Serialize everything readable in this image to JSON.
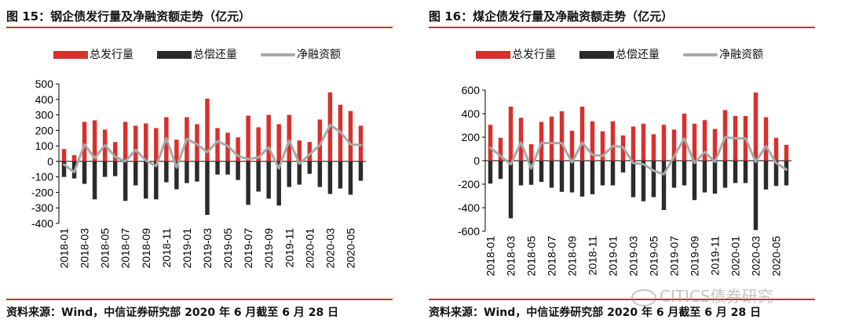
{
  "charts": [
    {
      "id": "left",
      "title": "图 15：钢企债发行量及净融资额走势（亿元）",
      "source": "资料来源：Wind，中信证券研究部 2020 年 6 月截至 6 月 28 日",
      "legend": [
        {
          "label": "总发行量",
          "kind": "bar",
          "color": "#d9302c"
        },
        {
          "label": "总偿还量",
          "kind": "bar",
          "color": "#2b2b2b"
        },
        {
          "label": "净融资额",
          "kind": "line",
          "color": "#a8a8a8"
        }
      ]
    },
    {
      "id": "right",
      "title": "图 16：煤企债发行量及净融资额走势（亿元）",
      "source": "资料来源：Wind，中信证券研究部 2020 年 6 月截至 6 月 28 日",
      "legend": [
        {
          "label": "总发行量",
          "kind": "bar",
          "color": "#d9302c"
        },
        {
          "label": "总偿还量",
          "kind": "bar",
          "color": "#2b2b2b"
        },
        {
          "label": "净融资额",
          "kind": "line",
          "color": "#a8a8a8"
        }
      ]
    }
  ],
  "watermark": "CITICS债券研究",
  "chart_data": [
    {
      "type": "bar",
      "title": "图 15：钢企债发行量及净融资额走势（亿元）",
      "categories": [
        "2018-01",
        "2018-02",
        "2018-03",
        "2018-04",
        "2018-05",
        "2018-06",
        "2018-07",
        "2018-08",
        "2018-09",
        "2018-10",
        "2018-11",
        "2018-12",
        "2019-01",
        "2019-02",
        "2019-03",
        "2019-04",
        "2019-05",
        "2019-06",
        "2019-07",
        "2019-08",
        "2019-09",
        "2019-10",
        "2019-11",
        "2019-12",
        "2020-01",
        "2020-02",
        "2020-03",
        "2020-04",
        "2020-05",
        "2020-06"
      ],
      "tick_labels": [
        "2018-01",
        "2018-03",
        "2018-05",
        "2018-07",
        "2018-09",
        "2018-11",
        "2019-01",
        "2019-03",
        "2019-05",
        "2019-07",
        "2019-09",
        "2019-11",
        "2020-01",
        "2020-03",
        "2020-05"
      ],
      "yticks": [
        500,
        400,
        300,
        200,
        100,
        0,
        -100,
        -200,
        -300,
        -400
      ],
      "ylim": [
        -400,
        500
      ],
      "series": [
        {
          "name": "总发行量",
          "kind": "bar",
          "color": "#d9302c",
          "values": [
            80,
            40,
            255,
            265,
            205,
            125,
            255,
            230,
            245,
            215,
            285,
            140,
            285,
            240,
            405,
            215,
            185,
            155,
            295,
            220,
            300,
            240,
            300,
            135,
            125,
            270,
            445,
            365,
            325,
            230
          ]
        },
        {
          "name": "总偿还量",
          "kind": "bar",
          "color": "#2b2b2b",
          "values": [
            -100,
            -110,
            -145,
            -245,
            -100,
            -95,
            -255,
            -155,
            -240,
            -245,
            -135,
            -180,
            -140,
            -130,
            -345,
            -85,
            -85,
            -120,
            -280,
            -195,
            -240,
            -285,
            -165,
            -150,
            -80,
            -165,
            -210,
            -175,
            -215,
            -125
          ]
        },
        {
          "name": "净融资额",
          "kind": "line",
          "color": "#a8a8a8",
          "values": [
            -20,
            -70,
            110,
            20,
            105,
            30,
            0,
            75,
            5,
            -30,
            150,
            -40,
            145,
            110,
            60,
            130,
            100,
            35,
            15,
            25,
            90,
            -45,
            135,
            -15,
            45,
            105,
            235,
            190,
            110,
            105
          ]
        }
      ]
    },
    {
      "type": "bar",
      "title": "图 16：煤企债发行量及净融资额走势（亿元）",
      "categories": [
        "2018-01",
        "2018-02",
        "2018-03",
        "2018-04",
        "2018-05",
        "2018-06",
        "2018-07",
        "2018-08",
        "2018-09",
        "2018-10",
        "2018-11",
        "2018-12",
        "2019-01",
        "2019-02",
        "2019-03",
        "2019-04",
        "2019-05",
        "2019-06",
        "2019-07",
        "2019-08",
        "2019-09",
        "2019-10",
        "2019-11",
        "2019-12",
        "2020-01",
        "2020-02",
        "2020-03",
        "2020-04",
        "2020-05",
        "2020-06"
      ],
      "tick_labels": [
        "2018-01",
        "2018-03",
        "2018-05",
        "2018-07",
        "2018-09",
        "2018-11",
        "2019-01",
        "2019-03",
        "2019-05",
        "2019-07",
        "2019-09",
        "2019-11",
        "2020-01",
        "2020-03",
        "2020-05"
      ],
      "yticks": [
        600,
        400,
        200,
        0,
        -200,
        -400,
        -600
      ],
      "ylim": [
        -600,
        600
      ],
      "series": [
        {
          "name": "总发行量",
          "kind": "bar",
          "color": "#d9302c",
          "values": [
            305,
            195,
            460,
            365,
            140,
            330,
            375,
            420,
            255,
            460,
            335,
            250,
            335,
            215,
            290,
            315,
            225,
            305,
            265,
            400,
            315,
            345,
            270,
            430,
            380,
            380,
            580,
            370,
            195,
            135
          ]
        },
        {
          "name": "总偿还量",
          "kind": "bar",
          "color": "#2b2b2b",
          "values": [
            -195,
            -155,
            -490,
            -210,
            -205,
            -180,
            -230,
            -265,
            -270,
            -305,
            -285,
            -210,
            -210,
            -100,
            -310,
            -345,
            -310,
            -420,
            -230,
            -210,
            -335,
            -270,
            -280,
            -230,
            -190,
            -190,
            -590,
            -245,
            -215,
            -210
          ]
        },
        {
          "name": "净融资额",
          "kind": "line",
          "color": "#a8a8a8",
          "values": [
            110,
            40,
            -30,
            155,
            -65,
            150,
            150,
            150,
            -15,
            155,
            50,
            40,
            125,
            115,
            -20,
            -30,
            -85,
            -115,
            35,
            190,
            -20,
            75,
            -10,
            200,
            190,
            190,
            -10,
            125,
            -20,
            -75
          ]
        }
      ]
    }
  ]
}
